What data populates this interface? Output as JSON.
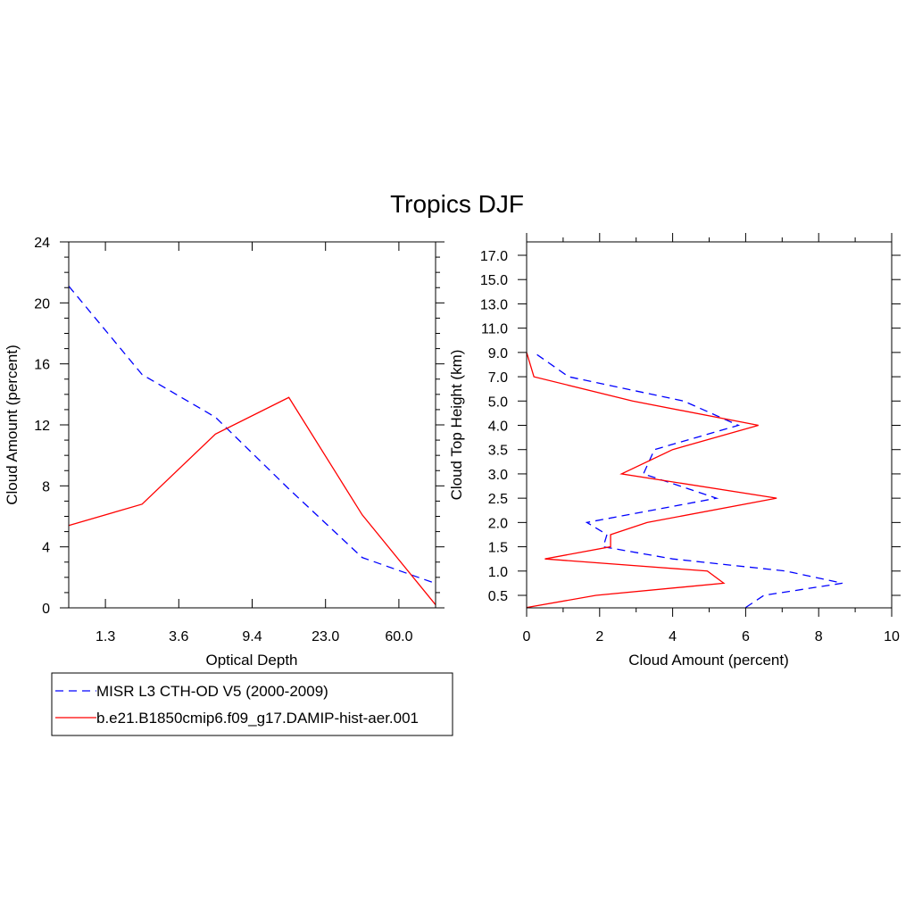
{
  "title": "Tropics DJF",
  "colors": {
    "obs": "#0000ff",
    "model": "#ff0000",
    "axis": "#000000"
  },
  "legend": {
    "entries": [
      {
        "label": "MISR L3 CTH-OD V5 (2000-2009)",
        "style": "dashed",
        "color": "#0000ff"
      },
      {
        "label": "b.e21.B1850cmip6.f09_g17.DAMIP-hist-aer.001",
        "style": "solid",
        "color": "#ff0000"
      }
    ]
  },
  "chart_data": [
    {
      "type": "line",
      "xlabel": "Optical Depth",
      "ylabel": "Cloud Amount (percent)",
      "xtick_labels": [
        "1.3",
        "3.6",
        "9.4",
        "23.0",
        "60.0"
      ],
      "x_category_index": [
        0,
        1,
        2,
        3,
        4,
        5,
        6
      ],
      "ylim": [
        0,
        24
      ],
      "yticks": [
        0,
        4,
        8,
        12,
        16,
        20,
        24
      ],
      "series": [
        {
          "name": "MISR L3 CTH-OD V5 (2000-2009)",
          "style": "dashed",
          "color": "#0000ff",
          "values": [
            21.1,
            15.3,
            12.5,
            7.8,
            3.3,
            1.6
          ]
        },
        {
          "name": "b.e21.B1850cmip6.f09_g17.DAMIP-hist-aer.001",
          "style": "solid",
          "color": "#ff0000",
          "values": [
            5.4,
            6.8,
            11.4,
            13.8,
            6.1,
            0.2
          ]
        }
      ]
    },
    {
      "type": "line",
      "xlabel": "Cloud Amount (percent)",
      "ylabel": "Cloud Top Height (km)",
      "xlim": [
        0,
        10
      ],
      "xticks": [
        0,
        2,
        4,
        6,
        8,
        10
      ],
      "ytick_labels": [
        "0.5",
        "1.0",
        "1.5",
        "2.0",
        "2.5",
        "3.0",
        "3.5",
        "4.0",
        "5.0",
        "7.0",
        "9.0",
        "11.0",
        "13.0",
        "15.0",
        "17.0"
      ],
      "series": [
        {
          "name": "MISR L3 CTH-OD V5 (2000-2009)",
          "style": "dashed",
          "color": "#0000ff",
          "x": [
            6.0,
            6.5,
            8.65,
            7.1,
            4.0,
            2.1,
            2.2,
            1.65,
            5.2,
            3.2,
            3.5,
            5.8,
            4.3,
            1.15,
            0.2
          ],
          "height_index": [
            -0.5,
            0.0,
            0.5,
            1.0,
            1.5,
            2.0,
            2.5,
            3.0,
            4.0,
            5.0,
            6.0,
            7.0,
            8.0,
            9.0,
            10.0
          ]
        },
        {
          "name": "b.e21.B1850cmip6.f09_g17.DAMIP-hist-aer.001",
          "style": "solid",
          "color": "#ff0000",
          "x": [
            0.0,
            1.9,
            5.4,
            4.95,
            0.5,
            2.3,
            2.3,
            3.3,
            6.85,
            2.6,
            4.0,
            6.35,
            2.9,
            0.2,
            0.0
          ],
          "height_index": [
            -0.5,
            0.0,
            0.5,
            1.0,
            1.5,
            2.0,
            2.5,
            3.0,
            4.0,
            5.0,
            6.0,
            7.0,
            8.0,
            9.0,
            10.0
          ]
        }
      ]
    }
  ]
}
